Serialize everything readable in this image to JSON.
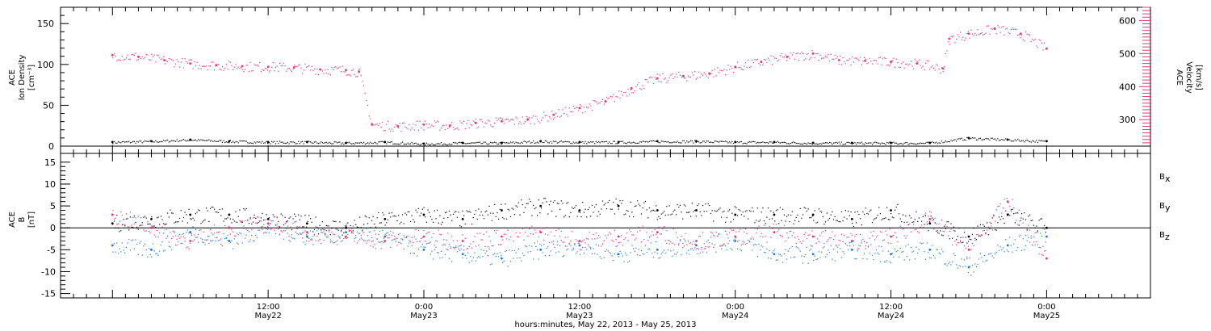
{
  "colors": {
    "black": "#000000",
    "blue": "#1a7ad6",
    "red": "#e8336b"
  },
  "chart_data": [
    {
      "type": "scatter",
      "panel": "ion-density-velocity",
      "ylabel_left": [
        "ACE",
        "Ion Density",
        "[cm⁻³]"
      ],
      "ylim_left": [
        0,
        170
      ],
      "yticks_left": [
        "150",
        "100",
        "50",
        "0"
      ],
      "ylabel_right": [
        "ACE",
        "Velocity",
        "[km/s]"
      ],
      "ylim_right": [
        220,
        640
      ],
      "yticks_right": [
        "600",
        "500",
        "400",
        "300"
      ],
      "series": [
        {
          "color": "black",
          "axis": "left",
          "x": [
            0,
            3,
            6,
            9,
            12,
            15,
            18,
            21,
            24,
            27,
            30,
            33,
            36,
            39,
            42,
            45,
            48,
            51,
            54,
            57,
            60,
            63,
            66,
            69,
            72
          ],
          "y": [
            5,
            6,
            8,
            6,
            5,
            5,
            4,
            5,
            3,
            4,
            4,
            6,
            5,
            5,
            6,
            6,
            5,
            5,
            4,
            4,
            4,
            4,
            10,
            8,
            6
          ]
        },
        {
          "color": "red",
          "axis": "right",
          "x": [
            0,
            2,
            4,
            6,
            8,
            10,
            12,
            14,
            16,
            18,
            19,
            20,
            22,
            24,
            26,
            28,
            30,
            32,
            34,
            36,
            38,
            40,
            42,
            44,
            46,
            48,
            50,
            52,
            54,
            56,
            58,
            60,
            62,
            64,
            64.5,
            66,
            68,
            70,
            72
          ],
          "y": [
            495,
            490,
            480,
            470,
            465,
            462,
            460,
            458,
            452,
            450,
            445,
            285,
            280,
            285,
            282,
            290,
            295,
            300,
            315,
            335,
            355,
            395,
            425,
            432,
            440,
            460,
            475,
            490,
            500,
            480,
            478,
            475,
            470,
            455,
            545,
            560,
            575,
            560,
            515
          ]
        }
      ]
    },
    {
      "type": "scatter",
      "panel": "magnetic-field",
      "ylabel": [
        "ACE",
        "B",
        "[nT]"
      ],
      "ylim": [
        -16,
        17
      ],
      "yticks": [
        "15",
        "10",
        "5",
        "0",
        "-5",
        "-10",
        "-15"
      ],
      "legend": [
        {
          "label": "B",
          "sub": "x",
          "color": "black"
        },
        {
          "label": "B",
          "sub": "y",
          "color": "blue"
        },
        {
          "label": "B",
          "sub": "z",
          "color": "red"
        }
      ],
      "series": [
        {
          "color": "black",
          "x": [
            0,
            3,
            6,
            9,
            12,
            15,
            18,
            21,
            24,
            27,
            30,
            33,
            36,
            39,
            42,
            45,
            48,
            51,
            54,
            57,
            60,
            63,
            66,
            69,
            72
          ],
          "y": [
            1,
            2,
            3,
            3,
            2,
            1,
            0,
            2,
            3,
            2,
            4,
            5,
            4,
            5,
            4,
            4,
            3,
            3,
            3,
            2,
            4,
            1,
            -2,
            3,
            0
          ]
        },
        {
          "color": "blue",
          "x": [
            0,
            3,
            6,
            9,
            12,
            15,
            18,
            21,
            24,
            27,
            30,
            33,
            36,
            39,
            42,
            45,
            48,
            51,
            54,
            57,
            60,
            63,
            66,
            69,
            72
          ],
          "y": [
            -4,
            -5,
            -1,
            -3,
            0,
            -2,
            -1,
            -2,
            -5,
            -6,
            -7,
            -5,
            -4,
            -6,
            -5,
            -4,
            -3,
            -6,
            -6,
            -5,
            -6,
            -5,
            -9,
            -4,
            -2
          ]
        },
        {
          "color": "red",
          "x": [
            0,
            3,
            6,
            9,
            12,
            15,
            18,
            21,
            24,
            27,
            30,
            33,
            36,
            39,
            42,
            45,
            48,
            51,
            54,
            57,
            60,
            63,
            66,
            69,
            72
          ],
          "y": [
            3,
            0,
            -3,
            0,
            1,
            -1,
            -2,
            -3,
            -2,
            -3,
            -2,
            -1,
            -3,
            -2,
            -1,
            -3,
            -2,
            -1,
            -2,
            -3,
            -2,
            2,
            -5,
            6,
            -7
          ]
        }
      ]
    }
  ],
  "x_axis": {
    "xlim_hours": [
      -4,
      80
    ],
    "ticks": [
      {
        "h": 12,
        "time": "12:00",
        "date": "May22"
      },
      {
        "h": 24,
        "time": "0:00",
        "date": "May23"
      },
      {
        "h": 36,
        "time": "12:00",
        "date": "May23"
      },
      {
        "h": 48,
        "time": "0:00",
        "date": "May24"
      },
      {
        "h": 60,
        "time": "12:00",
        "date": "May24"
      },
      {
        "h": 72,
        "time": "0:00",
        "date": "May25"
      }
    ],
    "title": "hours:minutes, May 22, 2013 - May 25, 2013"
  }
}
